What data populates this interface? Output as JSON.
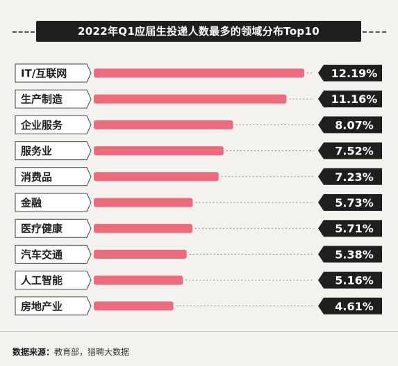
{
  "chart_data": {
    "type": "bar",
    "orientation": "horizontal",
    "title": "2022年Q1应届生投递人数最多的领域分布Top10",
    "categories": [
      "IT/互联网",
      "生产制造",
      "企业服务",
      "服务业",
      "消费品",
      "金融",
      "医疗健康",
      "汽车交通",
      "人工智能",
      "房地产业"
    ],
    "values": [
      12.19,
      11.16,
      8.07,
      7.52,
      7.23,
      5.73,
      5.71,
      5.38,
      5.16,
      4.61
    ],
    "value_labels": [
      "12.19%",
      "11.16%",
      "8.07%",
      "7.52%",
      "7.23%",
      "5.73%",
      "5.71%",
      "5.38%",
      "5.16%",
      "4.61%"
    ],
    "unit": "%",
    "bar_color": "#ee6b7d",
    "label_box_color": "#1f1f1f",
    "category_box_color": "#ffffff",
    "grid": false,
    "legend": "none"
  },
  "source": {
    "label": "数据来源：",
    "text": "教育部，猎聘大数据"
  }
}
